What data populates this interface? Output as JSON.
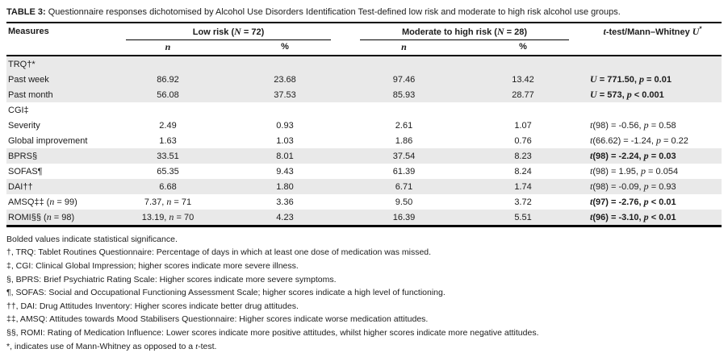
{
  "title": {
    "tag": "TABLE 3:",
    "text": " Questionnaire responses dichotomised by Alcohol Use Disorders Identification Test-defined low risk and moderate to high risk alcohol use groups."
  },
  "header": {
    "measures": "Measures",
    "group1": {
      "pre": "Low risk (",
      "it": "N",
      "post": " = 72)"
    },
    "group2": {
      "pre": "Moderate to high risk (",
      "it": "N",
      "post": " = 28)"
    },
    "stat": {
      "iv1": "t",
      "mid": "-test/Mann–Whitney ",
      "iv2": "U",
      "sup": "*"
    },
    "sub_n": "n",
    "sub_pct": "%"
  },
  "rows": [
    {
      "label": {
        "pre": "TRQ†*"
      },
      "section": true,
      "shaded": true,
      "bold": false,
      "cells": [
        {},
        {},
        {},
        {}
      ],
      "stat": {}
    },
    {
      "label": {
        "pre": "Past week"
      },
      "section": false,
      "shaded": true,
      "bold": true,
      "cells": [
        {
          "pre": "86.92"
        },
        {
          "pre": "23.68"
        },
        {
          "pre": "97.46"
        },
        {
          "pre": "13.42"
        }
      ],
      "stat": {
        "iv1": "U",
        "mid": " = 771.50, ",
        "iv2": "p",
        "tail": " = 0.01"
      }
    },
    {
      "label": {
        "pre": "Past month"
      },
      "section": false,
      "shaded": true,
      "bold": true,
      "cells": [
        {
          "pre": "56.08"
        },
        {
          "pre": "37.53"
        },
        {
          "pre": "85.93"
        },
        {
          "pre": "28.77"
        }
      ],
      "stat": {
        "iv1": "U",
        "mid": " = 573, ",
        "iv2": "p",
        "tail": " < 0.001"
      }
    },
    {
      "label": {
        "pre": "CGI‡"
      },
      "section": true,
      "shaded": false,
      "bold": false,
      "cells": [
        {},
        {},
        {},
        {}
      ],
      "stat": {}
    },
    {
      "label": {
        "pre": "Severity"
      },
      "section": false,
      "shaded": false,
      "bold": false,
      "cells": [
        {
          "pre": "2.49"
        },
        {
          "pre": "0.93"
        },
        {
          "pre": "2.61"
        },
        {
          "pre": "1.07"
        }
      ],
      "stat": {
        "iv1": "t",
        "mid": "(98) = -0.56, ",
        "iv2": "p",
        "tail": " = 0.58"
      }
    },
    {
      "label": {
        "pre": "Global improvement"
      },
      "section": false,
      "shaded": false,
      "bold": false,
      "cells": [
        {
          "pre": "1.63"
        },
        {
          "pre": "1.03"
        },
        {
          "pre": "1.86"
        },
        {
          "pre": "0.76"
        }
      ],
      "stat": {
        "iv1": "t",
        "mid": "(66.62) = -1.24, ",
        "iv2": "p",
        "tail": " = 0.22"
      }
    },
    {
      "label": {
        "pre": "BPRS§"
      },
      "section": false,
      "shaded": true,
      "bold": true,
      "cells": [
        {
          "pre": "33.51"
        },
        {
          "pre": "8.01"
        },
        {
          "pre": "37.54"
        },
        {
          "pre": "8.23"
        }
      ],
      "stat": {
        "iv1": "t",
        "mid": "(98) = -2.24, ",
        "iv2": "p",
        "tail": " = 0.03"
      }
    },
    {
      "label": {
        "pre": "SOFAS¶"
      },
      "section": false,
      "shaded": false,
      "bold": false,
      "cells": [
        {
          "pre": "65.35"
        },
        {
          "pre": "9.43"
        },
        {
          "pre": "61.39"
        },
        {
          "pre": "8.24"
        }
      ],
      "stat": {
        "iv1": "t",
        "mid": "(98) = 1.95, ",
        "iv2": "p",
        "tail": " = 0.054"
      }
    },
    {
      "label": {
        "pre": "DAI††"
      },
      "section": false,
      "shaded": true,
      "bold": false,
      "cells": [
        {
          "pre": "6.68"
        },
        {
          "pre": "1.80"
        },
        {
          "pre": "6.71"
        },
        {
          "pre": "1.74"
        }
      ],
      "stat": {
        "iv1": "t",
        "mid": "(98) = -0.09, ",
        "iv2": "p",
        "tail": " = 0.93"
      }
    },
    {
      "label": {
        "pre": "AMSQ‡‡ (",
        "it": "n",
        "post": " = 99)"
      },
      "section": false,
      "shaded": false,
      "bold": true,
      "cells": [
        {
          "pre": "7.37, ",
          "it": "n",
          "post": " = 71"
        },
        {
          "pre": "3.36"
        },
        {
          "pre": "9.50"
        },
        {
          "pre": "3.72"
        }
      ],
      "stat": {
        "iv1": "t",
        "mid": "(97) = -2.76, ",
        "iv2": "p",
        "tail": " < 0.01"
      }
    },
    {
      "label": {
        "pre": "ROMI§§ (",
        "it": "n",
        "post": " = 98)"
      },
      "section": false,
      "shaded": true,
      "bold": true,
      "cells": [
        {
          "pre": "13.19, ",
          "it": "n",
          "post": " = 70"
        },
        {
          "pre": "4.23"
        },
        {
          "pre": "16.39"
        },
        {
          "pre": "5.51"
        }
      ],
      "stat": {
        "iv1": "t",
        "mid": "(96) = -3.10, ",
        "iv2": "p",
        "tail": " < 0.01"
      }
    }
  ],
  "footnotes": [
    {
      "pre": "Bolded values indicate statistical significance."
    },
    {
      "pre": "†, TRQ: Tablet Routines Questionnaire: Percentage of days in which at least one dose of medication was missed."
    },
    {
      "pre": "‡, CGI: Clinical Global Impression; higher scores indicate more severe illness."
    },
    {
      "pre": "§, BPRS: Brief Psychiatric Rating Scale: Higher scores indicate more severe symptoms."
    },
    {
      "pre": "¶, SOFAS: Social and Occupational Functioning Assessment Scale; higher scores indicate a high level of functioning."
    },
    {
      "pre": "††, DAI: Drug Attitudes Inventory: Higher scores indicate better drug attitudes."
    },
    {
      "pre": "‡‡, AMSQ: Attitudes towards Mood Stabilisers Questionnaire: Higher scores indicate worse medication attitudes."
    },
    {
      "pre": "§§, ROMI: Rating of Medication Influence: Lower scores indicate more positive attitudes, whilst higher scores indicate more negative attitudes."
    },
    {
      "pre": "*, indicates use of Mann-Whitney as opposed to a ",
      "it": "t",
      "post": "-test."
    }
  ],
  "colors": {
    "shaded_row": "#e9e9e9",
    "rule": "#000000",
    "text": "#1c1c1c"
  }
}
